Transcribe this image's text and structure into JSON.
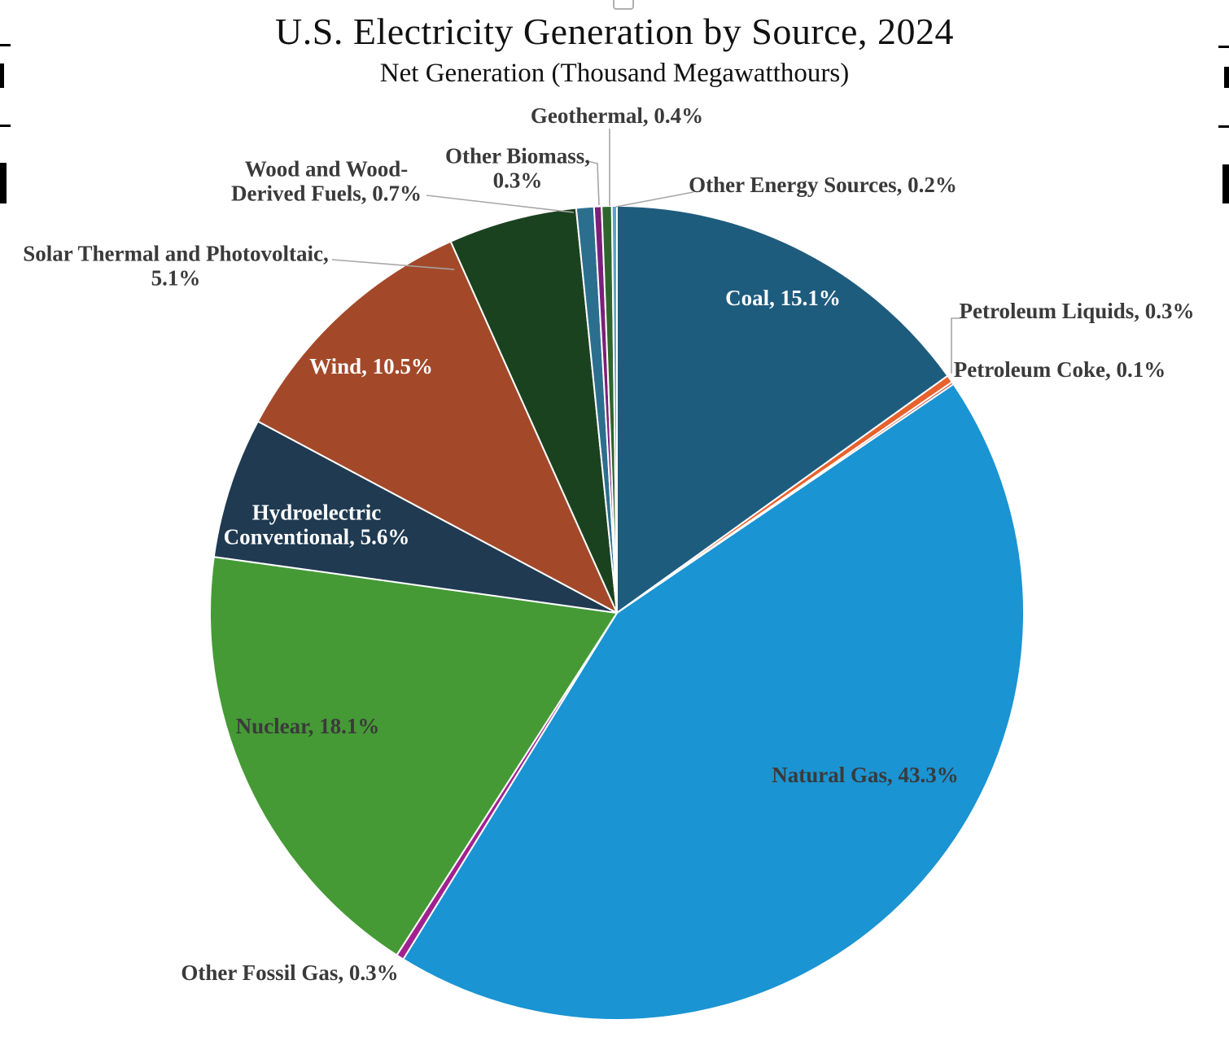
{
  "chart_data": {
    "type": "pie",
    "title": "U.S. Electricity Generation by Source, 2024",
    "subtitle": "Net Generation (Thousand Megawatthours)",
    "unit": "percent share of net generation",
    "direction": "clockwise",
    "start_angle_deg": 0,
    "legend": "none",
    "label_style": "category-and-percent",
    "slices": [
      {
        "label": "Coal",
        "value": 15.1,
        "color": "#1E5C7E",
        "display": "Coal, 15.1%"
      },
      {
        "label": "Petroleum Liquids",
        "value": 0.3,
        "color": "#E8622D",
        "display": "Petroleum Liquids, 0.3%"
      },
      {
        "label": "Petroleum Coke",
        "value": 0.1,
        "color": "#C0392B",
        "display": "Petroleum Coke, 0.1%"
      },
      {
        "label": "Natural Gas",
        "value": 43.3,
        "color": "#1A94D2",
        "display": "Natural Gas, 43.3%"
      },
      {
        "label": "Other Fossil Gas",
        "value": 0.3,
        "color": "#A1218E",
        "display": "Other Fossil Gas, 0.3%"
      },
      {
        "label": "Nuclear",
        "value": 18.1,
        "color": "#459A35",
        "display": "Nuclear, 18.1%"
      },
      {
        "label": "Hydroelectric Conventional",
        "value": 5.6,
        "color": "#1F3A51",
        "display": "Hydroelectric Conventional, 5.6%"
      },
      {
        "label": "Wind",
        "value": 10.5,
        "color": "#A3492A",
        "display": "Wind, 10.5%"
      },
      {
        "label": "Solar Thermal and Photovoltaic",
        "value": 5.1,
        "color": "#1B421F",
        "display": "Solar Thermal and Photovoltaic, 5.1%"
      },
      {
        "label": "Wood and Wood-Derived Fuels",
        "value": 0.7,
        "color": "#2C6E8E",
        "display": "Wood and Wood-Derived Fuels, 0.7%"
      },
      {
        "label": "Other Biomass",
        "value": 0.3,
        "color": "#7B2079",
        "display": "Other Biomass, 0.3%"
      },
      {
        "label": "Geothermal",
        "value": 0.4,
        "color": "#2F652C",
        "display": "Geothermal, 0.4%"
      },
      {
        "label": "Other Energy Sources",
        "value": 0.2,
        "color": "#5BA3CC",
        "display": "Other Energy Sources, 0.2%"
      }
    ],
    "colors": {
      "background": "#FFFFFF",
      "slice_border": "#FFFFFF",
      "leader_line": "#A6A6A6",
      "dark_label_text": "#3A3A3A",
      "light_label_text": "#FFFFFF",
      "title_text": "#111111"
    }
  }
}
